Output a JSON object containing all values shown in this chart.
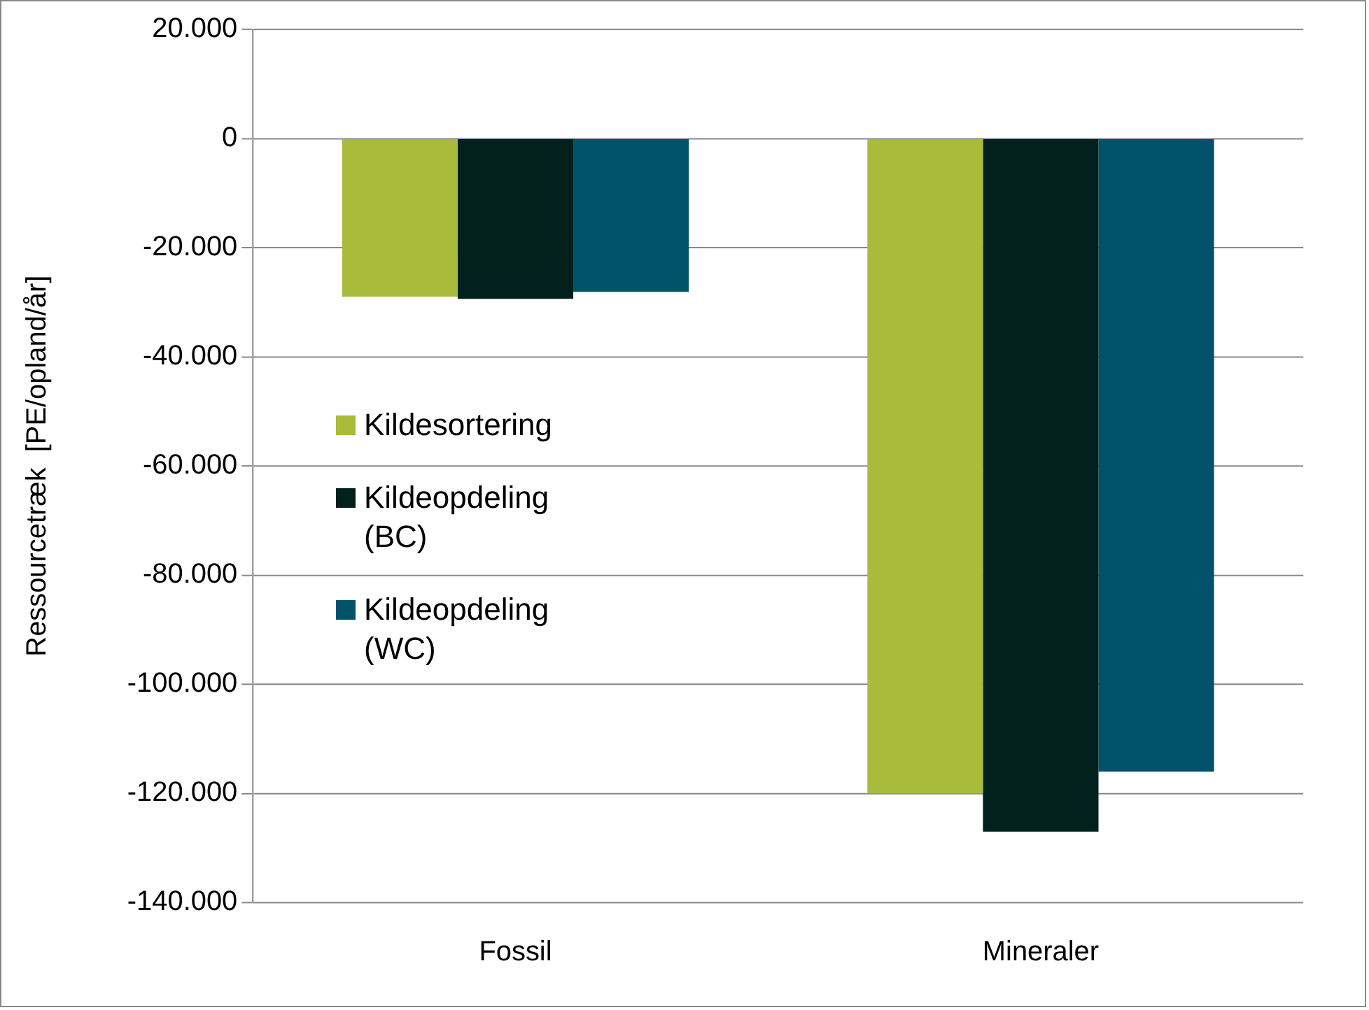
{
  "chart_data": {
    "type": "bar",
    "ylabel": "Ressourcetræk  [PE/opland/år]",
    "categories": [
      "Fossil",
      "Mineraler"
    ],
    "series": [
      {
        "name": "Kildesortering",
        "color": "#a9bb3a",
        "values": [
          -29000,
          -120000
        ]
      },
      {
        "name": "Kildeopdeling (BC)",
        "color": "#03211c",
        "values": [
          -29400,
          -127000
        ]
      },
      {
        "name": "Kildeopdeling (WC)",
        "color": "#00526a",
        "values": [
          -28100,
          -116000
        ]
      }
    ],
    "ylim": [
      -140000,
      20000
    ],
    "yticks": [
      {
        "value": -140000,
        "label": "-140.000"
      },
      {
        "value": -120000,
        "label": "-120.000"
      },
      {
        "value": -100000,
        "label": "-100.000"
      },
      {
        "value": -80000,
        "label": "-80.000"
      },
      {
        "value": -60000,
        "label": "-60.000"
      },
      {
        "value": -40000,
        "label": "-40.000"
      },
      {
        "value": -20000,
        "label": "-20.000"
      },
      {
        "value": 0,
        "label": "0"
      },
      {
        "value": 20000,
        "label": "20.000"
      }
    ],
    "grid": "y",
    "legend": "left"
  }
}
